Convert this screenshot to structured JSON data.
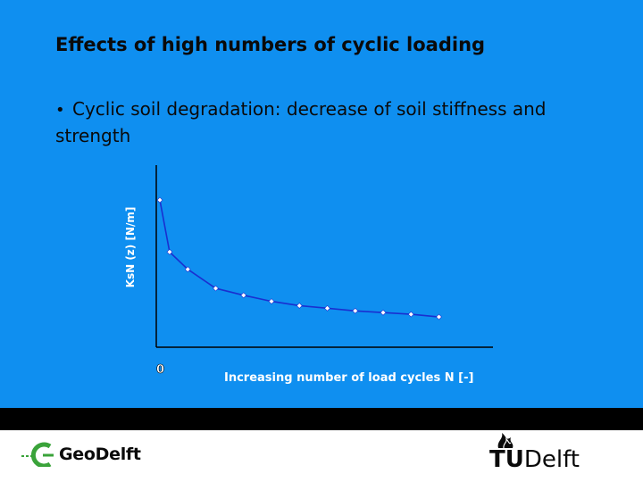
{
  "slide": {
    "title": "Effects of high numbers of cyclic loading",
    "bullet_symbol": "•",
    "bullet_text": "Cyclic soil degradation: decrease of soil stiffness and strength"
  },
  "colors": {
    "background": "#0f8ff0",
    "series_line": "#1a2fd0",
    "marker_fill": "#ffffff",
    "axis_text": "#ffffff",
    "band": "#000000"
  },
  "chart_data": {
    "type": "line",
    "title": "",
    "xlabel": "Increasing number of load cycles N  [-]",
    "ylabel": "KsN (z)  [N/m]",
    "origin_label": "0",
    "grid": false,
    "legend": "none",
    "xlim": [
      0,
      12
    ],
    "ylim": [
      0,
      100
    ],
    "x": [
      0,
      0.35,
      1,
      2,
      3,
      4,
      5,
      6,
      7,
      8,
      9,
      10
    ],
    "series": [
      {
        "values": [
          85,
          55,
          45,
          34,
          30,
          26.5,
          24,
          22.5,
          21,
          20,
          19,
          17.5
        ]
      }
    ]
  },
  "footer": {
    "left_logo_text": "GeoDelft",
    "right_logo_tu": "TU",
    "right_logo_delft": "Delft"
  }
}
